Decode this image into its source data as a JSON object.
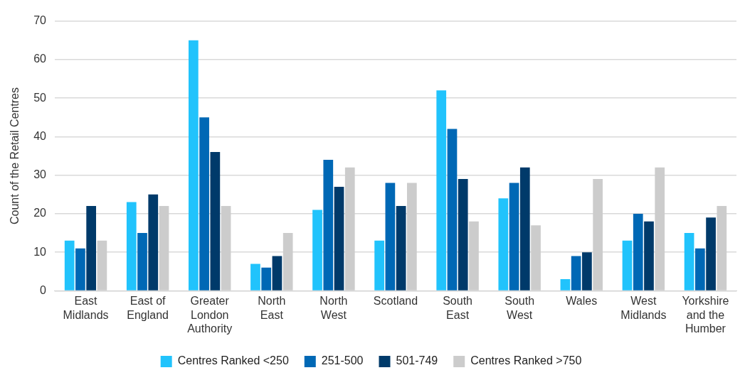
{
  "chart_data": {
    "type": "bar",
    "ylabel": "Count of the Retail Centres",
    "categories": [
      "East Midlands",
      "East of England",
      "Greater London Authority",
      "North East",
      "North West",
      "Scotland",
      "South East",
      "South West",
      "Wales",
      "West Midlands",
      "Yorkshire and the Humber"
    ],
    "series": [
      {
        "name": "Centres Ranked <250",
        "color": "#21c3fc",
        "values": [
          13,
          23,
          65,
          7,
          21,
          13,
          52,
          24,
          3,
          13,
          15
        ]
      },
      {
        "name": "251-500",
        "color": "#0068b5",
        "values": [
          11,
          15,
          45,
          6,
          34,
          28,
          42,
          28,
          9,
          20,
          11
        ]
      },
      {
        "name": "501-749",
        "color": "#003a6a",
        "values": [
          22,
          25,
          36,
          9,
          27,
          22,
          29,
          32,
          10,
          18,
          19
        ]
      },
      {
        "name": "Centres Ranked >750",
        "color": "#cccccc",
        "values": [
          13,
          22,
          22,
          15,
          32,
          28,
          18,
          17,
          29,
          32,
          22
        ]
      }
    ],
    "ylim": [
      0,
      70
    ],
    "yticks": [
      0,
      10,
      20,
      30,
      40,
      50,
      60,
      70
    ],
    "grid": "y",
    "legend": "bottom"
  }
}
